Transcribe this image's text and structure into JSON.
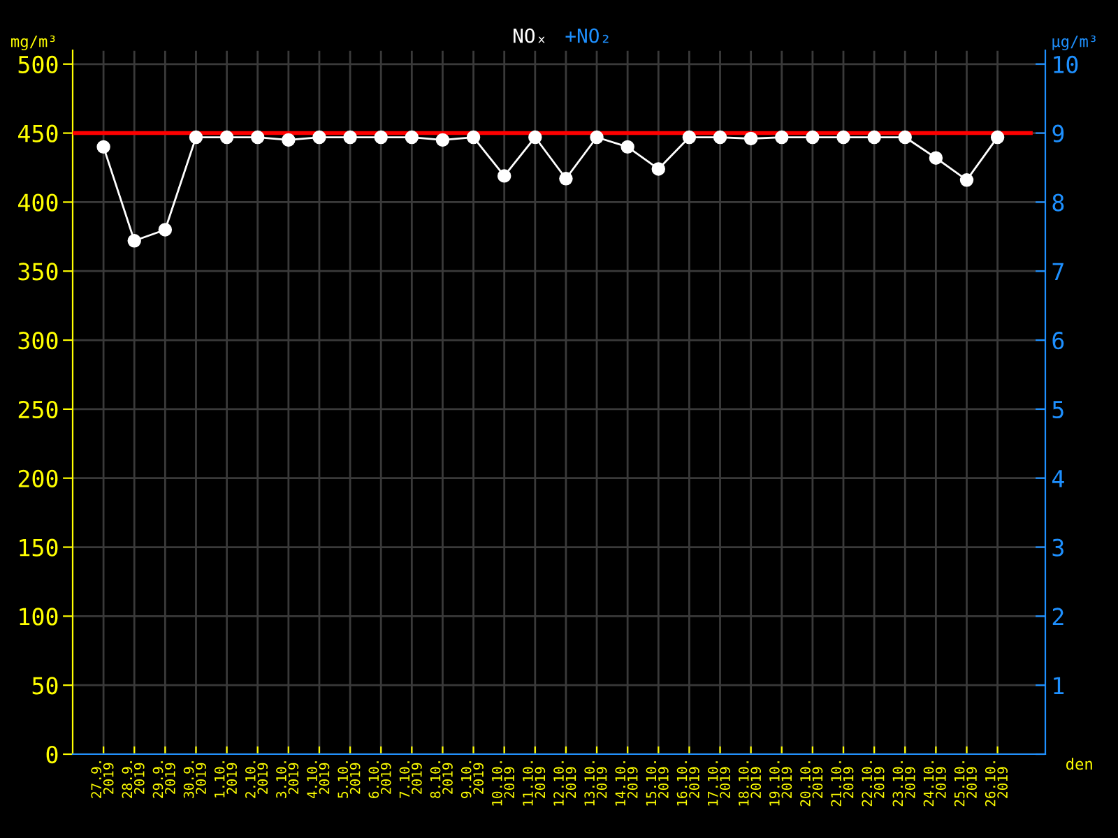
{
  "chart_data": {
    "type": "line",
    "categories": [
      "27.9.\n2019",
      "28.9.\n2019",
      "29.9.\n2019",
      "30.9.\n2019",
      "1.10.\n2019",
      "2.10.\n2019",
      "3.10.\n2019",
      "4.10.\n2019",
      "5.10.\n2019",
      "6.10.\n2019",
      "7.10.\n2019",
      "8.10.\n2019",
      "9.10.\n2019",
      "10.10.\n2019",
      "11.10.\n2019",
      "12.10.\n2019",
      "13.10.\n2019",
      "14.10.\n2019",
      "15.10.\n2019",
      "16.10.\n2019",
      "17.10.\n2019",
      "18.10.\n2019",
      "19.10.\n2019",
      "20.10.\n2019",
      "21.10.\n2019",
      "22.10.\n2019",
      "23.10.\n2019",
      "24.10.\n2019",
      "25.10.\n2019",
      "26.10.\n2019"
    ],
    "series": [
      {
        "name": "NOₓ",
        "color": "#ffffff",
        "values": [
          440,
          372,
          380,
          447,
          447,
          447,
          445,
          447,
          447,
          447,
          447,
          445,
          447,
          419,
          447,
          417,
          447,
          440,
          424,
          447,
          447,
          446,
          447,
          447,
          447,
          447,
          447,
          432,
          416,
          447
        ]
      },
      {
        "name": "+NO₂",
        "color": "#1e90ff",
        "values": [
          null,
          null,
          null,
          null,
          null,
          null,
          null,
          null,
          null,
          null,
          null,
          null,
          null,
          null,
          null,
          null,
          null,
          null,
          null,
          null,
          null,
          null,
          null,
          null,
          null,
          null,
          null,
          null,
          null,
          null
        ]
      }
    ],
    "xlabel": "den",
    "ylabel": "mg/m³",
    "y2label": "µg/m³",
    "ylim": [
      0,
      510
    ],
    "yticks": [
      0,
      50,
      100,
      150,
      200,
      250,
      300,
      350,
      400,
      450,
      500
    ],
    "y2lim": [
      0,
      10.2
    ],
    "y2ticks": [
      {
        "value": 0,
        "label": null
      },
      1,
      2,
      3,
      4,
      5,
      6,
      7,
      8,
      9,
      10
    ],
    "ref_lines": [
      {
        "axis": "y",
        "value": 450,
        "color": "#ff0000"
      }
    ],
    "grid": true,
    "legend": "top",
    "marker": "circle",
    "line_style": "solid"
  }
}
